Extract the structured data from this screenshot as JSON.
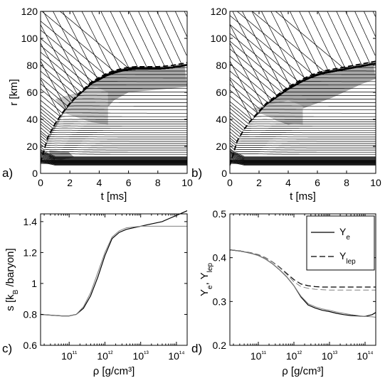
{
  "chart_data": [
    {
      "panel": "a)",
      "type": "line",
      "xlabel": "t [ms]",
      "ylabel": "r [km]",
      "xlim": [
        0,
        10
      ],
      "ylim": [
        0,
        120
      ],
      "x_ticks": [
        "0",
        "2",
        "4",
        "6",
        "8",
        "10"
      ],
      "y_ticks": [
        "0",
        "20",
        "40",
        "60",
        "80",
        "100",
        "120"
      ],
      "shock_radius": {
        "style": "dashed",
        "x": [
          0,
          0.5,
          1,
          1.5,
          2,
          2.5,
          3,
          3.5,
          4,
          4.5,
          5,
          5.5,
          6,
          6.5,
          7,
          7.5,
          8,
          8.5,
          9,
          9.5,
          10
        ],
        "y": [
          8,
          27,
          37,
          45,
          52,
          58,
          63,
          68,
          71,
          74,
          76,
          77.5,
          78.5,
          79,
          79,
          79,
          79,
          79.5,
          80,
          81,
          82
        ]
      },
      "shaded_regions": [
        "high-entropy region behind the shock",
        "inner shaded patch near r≈15 km at t<2 ms"
      ],
      "mass_shell_trajectories": "radial mass-shell lines; dense near r≈8–12 km; infalling lines from large r decelerate at the shock"
    },
    {
      "panel": "b)",
      "type": "line",
      "xlabel": "t [ms]",
      "ylabel": "",
      "xlim": [
        0,
        10
      ],
      "ylim": [
        0,
        120
      ],
      "x_ticks": [
        "0",
        "2",
        "4",
        "6",
        "8",
        "10"
      ],
      "y_ticks": [
        "0",
        "20",
        "40",
        "60",
        "80",
        "100",
        "120"
      ],
      "shock_radius": {
        "style": "dashed",
        "x": [
          0,
          0.5,
          1,
          1.5,
          2,
          2.5,
          3,
          3.5,
          4,
          4.5,
          5,
          5.5,
          6,
          6.5,
          7,
          7.5,
          8,
          8.5,
          9,
          9.5,
          10
        ],
        "y": [
          6,
          24,
          33,
          40,
          46,
          52,
          56,
          60,
          64,
          67,
          70,
          72.5,
          74.5,
          76,
          77,
          78,
          79,
          80,
          81,
          82,
          83
        ]
      },
      "shaded_regions": [
        "high-entropy region behind the shock"
      ],
      "mass_shell_trajectories": "radial mass-shell lines; dense near r≈8–12 km; infalling lines from large r decelerate at the shock"
    },
    {
      "panel": "c)",
      "type": "line",
      "xlabel": "ρ [g/cm³]",
      "ylabel": "s [k_B/baryon]",
      "x_scale": "log",
      "xlim_log10": [
        10.2,
        14.3
      ],
      "ylim": [
        0.6,
        1.45
      ],
      "x_ticks": [
        "10¹¹",
        "10¹²",
        "10¹³",
        "10¹⁴"
      ],
      "y_ticks": [
        "0.6",
        "0.8",
        "1",
        "1.2",
        "1.4"
      ],
      "series": [
        {
          "color": "#000000",
          "log10_rho": [
            10.2,
            10.5,
            10.8,
            11.0,
            11.2,
            11.4,
            11.6,
            11.8,
            12.0,
            12.2,
            12.4,
            12.6,
            12.8,
            13.0,
            13.2,
            13.4,
            13.6,
            13.8,
            14.0,
            14.2,
            14.3
          ],
          "s": [
            0.8,
            0.795,
            0.79,
            0.79,
            0.8,
            0.84,
            0.92,
            1.04,
            1.18,
            1.29,
            1.33,
            1.35,
            1.36,
            1.37,
            1.38,
            1.39,
            1.4,
            1.42,
            1.44,
            1.46,
            1.47
          ]
        },
        {
          "color": "#808080",
          "log10_rho": [
            10.2,
            10.5,
            10.8,
            11.0,
            11.2,
            11.4,
            11.6,
            11.8,
            12.0,
            12.2,
            12.4,
            12.6,
            12.8,
            13.0,
            13.2,
            13.4,
            13.6,
            13.8,
            14.0,
            14.2,
            14.3
          ],
          "s": [
            0.8,
            0.795,
            0.79,
            0.79,
            0.8,
            0.85,
            0.94,
            1.07,
            1.2,
            1.3,
            1.34,
            1.36,
            1.365,
            1.37,
            1.37,
            1.37,
            1.37,
            1.37,
            1.37,
            1.37,
            1.37
          ]
        }
      ]
    },
    {
      "panel": "d)",
      "type": "line",
      "xlabel": "ρ [g/cm³]",
      "ylabel": "Y_e, Y_lep",
      "x_scale": "log",
      "xlim_log10": [
        10.2,
        14.3
      ],
      "ylim": [
        0.2,
        0.5
      ],
      "x_ticks": [
        "10¹¹",
        "10¹²",
        "10¹³",
        "10¹⁴"
      ],
      "y_ticks": [
        "0.2",
        "0.3",
        "0.4",
        "0.5"
      ],
      "legend": {
        "placement": "top-right",
        "entries": [
          "Y_e",
          "Y_lep"
        ]
      },
      "series": [
        {
          "name": "Y_e",
          "style": "solid",
          "color": "#000000",
          "log10_rho": [
            10.2,
            10.5,
            10.8,
            11.0,
            11.2,
            11.4,
            11.6,
            11.8,
            12.0,
            12.2,
            12.4,
            12.6,
            12.8,
            13.0,
            13.2,
            13.4,
            13.6,
            13.8,
            14.0,
            14.2,
            14.3
          ],
          "value": [
            0.418,
            0.415,
            0.41,
            0.405,
            0.397,
            0.386,
            0.372,
            0.356,
            0.336,
            0.31,
            0.292,
            0.285,
            0.28,
            0.277,
            0.273,
            0.27,
            0.268,
            0.267,
            0.266,
            0.27,
            0.275
          ]
        },
        {
          "name": "Y_e",
          "style": "solid",
          "color": "#808080",
          "log10_rho": [
            10.2,
            10.5,
            10.8,
            11.0,
            11.2,
            11.4,
            11.6,
            11.8,
            12.0,
            12.2,
            12.4,
            12.6,
            12.8,
            13.0,
            13.2,
            13.4,
            13.6,
            13.8,
            14.0,
            14.2,
            14.3
          ],
          "value": [
            0.418,
            0.415,
            0.41,
            0.405,
            0.397,
            0.386,
            0.372,
            0.356,
            0.336,
            0.312,
            0.295,
            0.288,
            0.283,
            0.28,
            0.276,
            0.273,
            0.27,
            0.268,
            0.266,
            0.265,
            0.264
          ]
        },
        {
          "name": "Y_lep",
          "style": "dashed",
          "color": "#000000",
          "log10_rho": [
            10.2,
            10.5,
            10.8,
            11.0,
            11.2,
            11.4,
            11.6,
            11.8,
            12.0,
            12.2,
            12.4,
            12.6,
            12.8,
            13.0,
            13.2,
            13.4,
            13.6,
            13.8,
            14.0,
            14.2,
            14.3
          ],
          "value": [
            0.418,
            0.415,
            0.411,
            0.407,
            0.4,
            0.39,
            0.378,
            0.364,
            0.35,
            0.34,
            0.336,
            0.334,
            0.333,
            0.333,
            0.333,
            0.333,
            0.333,
            0.333,
            0.333,
            0.333,
            0.333
          ]
        },
        {
          "name": "Y_lep",
          "style": "dashed",
          "color": "#808080",
          "log10_rho": [
            10.2,
            10.5,
            10.8,
            11.0,
            11.2,
            11.4,
            11.6,
            11.8,
            12.0,
            12.2,
            12.4,
            12.6,
            12.8,
            13.0,
            13.2,
            13.4,
            13.6,
            13.8,
            14.0,
            14.2,
            14.3
          ],
          "value": [
            0.418,
            0.415,
            0.411,
            0.407,
            0.4,
            0.39,
            0.377,
            0.362,
            0.345,
            0.334,
            0.33,
            0.328,
            0.327,
            0.326,
            0.326,
            0.326,
            0.326,
            0.326,
            0.326,
            0.326,
            0.326
          ]
        }
      ]
    }
  ]
}
